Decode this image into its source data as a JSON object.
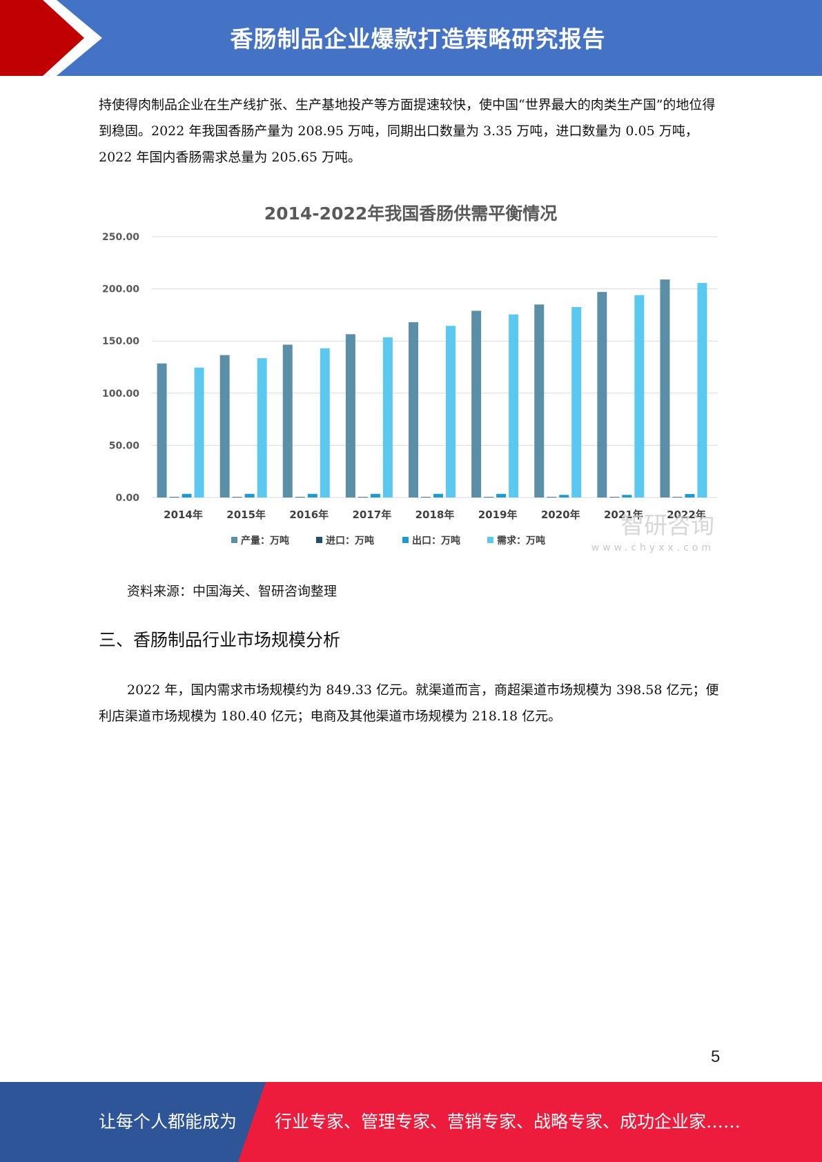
{
  "header": {
    "title": "香肠制品企业爆款打造策略研究报告"
  },
  "body": {
    "paragraph1": "持使得肉制品企业在生产线扩张、生产基地投产等方面提速较快，使中国“世界最大的肉类生产国”的地位得到稳固。2022 年我国香肠产量为 208.95 万吨，同期出口数量为 3.35 万吨，进口数量为 0.05 万吨，2022 年国内香肠需求总量为 205.65 万吨。",
    "source": "资料来源：中国海关、智研咨询整理",
    "section_title": "三、香肠制品行业市场规模分析",
    "paragraph2": "2022 年，国内需求市场规模约为 849.33 亿元。就渠道而言，商超渠道市场规模为 398.58 亿元；便利店渠道市场规模为 180.40 亿元；电商及其他渠道市场规模为 218.18 亿元。",
    "watermark_text": "智研咨询",
    "watermark_url": "www.chyxx.com"
  },
  "page_number": "5",
  "footer": {
    "left": "让每个人都能成为",
    "right": "行业专家、管理专家、营销专家、战略专家、成功企业家……"
  },
  "colors": {
    "header_blue": "#4472c4",
    "header_red": "#c00000",
    "footer_blue": "#2d5597",
    "footer_red": "#ee1c3c",
    "series_production": "#5b8fa8",
    "series_import": "#1f5069",
    "series_export": "#1d9bd1",
    "series_demand": "#5bc8f0"
  },
  "chart_data": {
    "type": "bar",
    "title": "2014-2022年我国香肠供需平衡情况",
    "categories": [
      "2014年",
      "2015年",
      "2016年",
      "2017年",
      "2018年",
      "2019年",
      "2020年",
      "2021年",
      "2022年"
    ],
    "series": [
      {
        "name": "产量：万吨",
        "values": [
          128.5,
          136.5,
          146.5,
          156.5,
          168.0,
          179.0,
          185.0,
          197.0,
          208.95
        ]
      },
      {
        "name": "进口：万吨",
        "values": [
          0.1,
          0.1,
          0.1,
          0.1,
          0.1,
          0.1,
          0.1,
          0.1,
          0.05
        ]
      },
      {
        "name": "出口：万吨",
        "values": [
          3.5,
          3.5,
          3.5,
          3.5,
          3.5,
          3.5,
          2.5,
          2.5,
          3.35
        ]
      },
      {
        "name": "需求：万吨",
        "values": [
          124.5,
          133.5,
          143.0,
          153.5,
          164.5,
          175.5,
          182.5,
          194.0,
          205.65
        ]
      }
    ],
    "yticks": [
      "0.00",
      "50.00",
      "100.00",
      "150.00",
      "200.00",
      "250.00"
    ],
    "ylim": [
      0,
      250
    ],
    "grid": true,
    "legend": "bottom"
  }
}
